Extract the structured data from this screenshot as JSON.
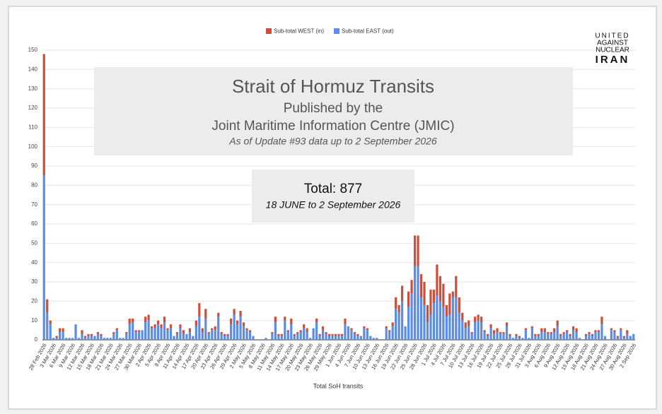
{
  "chart_data": {
    "type": "stacked_bar",
    "title": "Strait of Hormuz Transits",
    "subtitle": "Published by the",
    "subtitle2": "Joint Maritime Information Centre (JMIC)",
    "source_note": "As of Update #93 data up to 2 September 2026",
    "total_label": "Total: 877",
    "date_range": "18 JUNE to 2 September 2026",
    "logo": [
      "UNITED",
      "AGAINST",
      "NUCLEAR",
      "IRAN"
    ],
    "xlabel": "Total SoH transits",
    "ylim": [
      0,
      150
    ],
    "yticks": [
      0,
      10,
      20,
      30,
      40,
      50,
      60,
      70,
      80,
      90,
      100,
      110,
      120,
      130,
      140,
      150
    ],
    "grid": true,
    "legend": "top",
    "categories": [
      "28 Feb 2026",
      null,
      null,
      "3 Mar 2026",
      null,
      null,
      "6 Mar 2026",
      null,
      null,
      "9 Mar 2026",
      null,
      null,
      "12 Mar 2026",
      null,
      null,
      "15 Mar 2026",
      null,
      null,
      "18 Mar 2026",
      null,
      null,
      "21 Mar 2026",
      null,
      null,
      "24 Mar 2026",
      null,
      null,
      "27 Mar 2026",
      null,
      null,
      "30 Mar 2026",
      null,
      null,
      "2 Apr 2026",
      null,
      null,
      "5 Apr 2026",
      null,
      null,
      "8 Apr 2026",
      null,
      null,
      "11 Apr 2026",
      null,
      null,
      "14 Apr 2026",
      null,
      null,
      "17 Apr 2026",
      null,
      null,
      "20 Apr 2026",
      null,
      null,
      "23 Apr 2026",
      null,
      null,
      "26 Apr 2026",
      null,
      null,
      "29 Apr 2026",
      null,
      null,
      "2 May 2026",
      null,
      null,
      "5 May 2026",
      null,
      null,
      "8 May 2026",
      null,
      null,
      "11 May 2026",
      null,
      null,
      "14 May 2026",
      null,
      null,
      "17 May 2026",
      null,
      null,
      "20 May 2026",
      null,
      null,
      "23 May 2026",
      null,
      null,
      "26 May 2026",
      null,
      null,
      "29 May 2026",
      null,
      null,
      "1 Jun 2026",
      null,
      null,
      "4 Jun 2026",
      null,
      null,
      "7 Jun 2026",
      null,
      null,
      "10 Jun 2026",
      null,
      null,
      "13 Jun 2026",
      null,
      null,
      "16 Jun 2026",
      null,
      null,
      "19 Jun 2026",
      null,
      null,
      "22 Jun 2026",
      null,
      null,
      "25 Jun 2026",
      null,
      null,
      "28 Jun 2026",
      null,
      null,
      "1 Jul 2026",
      null,
      null,
      "4 Jul 2026",
      null,
      null,
      "7 Jul 2026",
      null,
      null,
      "10 Jul 2026",
      null,
      null,
      "13 Jul 2026",
      null,
      null,
      "16 Jul 2026",
      null,
      null,
      "19 Jul 2026",
      null,
      null,
      "22 Jul 2026",
      null,
      null,
      "25 Jul 2026",
      null,
      null,
      "28 Jul 2026",
      null,
      null,
      "31 Jul 2026",
      null,
      null,
      "3 Aug 2026",
      null,
      null,
      "6 Aug 2026",
      null,
      null,
      "9 Aug 2026",
      null,
      null,
      "12 Aug 2026",
      null,
      null,
      "15 Aug 2026",
      null,
      null,
      "18 Aug 2026",
      null,
      null,
      "21 Aug 2026",
      null,
      null,
      "24 Aug 2026",
      null,
      null,
      "27 Aug 2026",
      null,
      null,
      "30 Aug 2026",
      null,
      null,
      "2 Sep 2026"
    ],
    "series": [
      {
        "name": "Sub-total EAST (out)",
        "color": "#5b8de6",
        "values": [
          85,
          14,
          8,
          1,
          1,
          4,
          4,
          1,
          1,
          1,
          8,
          1,
          3,
          1,
          2,
          2,
          2,
          3,
          2,
          1,
          1,
          1,
          3,
          5,
          1,
          1,
          3,
          8,
          9,
          4,
          4,
          5,
          9,
          10,
          6,
          6,
          8,
          6,
          9,
          5,
          6,
          2,
          3,
          6,
          3,
          3,
          4,
          2,
          7,
          12,
          4,
          11,
          3,
          5,
          5,
          12,
          3,
          2,
          2,
          8,
          13,
          8,
          12,
          7,
          5,
          4,
          2,
          0,
          0,
          0,
          1,
          0,
          3,
          9,
          2,
          2,
          10,
          4,
          8,
          2,
          3,
          4,
          6,
          4,
          1,
          6,
          9,
          2,
          5,
          3,
          2,
          2,
          2,
          2,
          2,
          8,
          7,
          5,
          3,
          2,
          2,
          6,
          5,
          2,
          1,
          1,
          0,
          0,
          6,
          4,
          7,
          16,
          14,
          20,
          7,
          17,
          24,
          38,
          38,
          22,
          18,
          9,
          13,
          19,
          23,
          20,
          17,
          12,
          13,
          22,
          22,
          14,
          10,
          6,
          7,
          3,
          9,
          10,
          9,
          4,
          2,
          6,
          3,
          4,
          3,
          3,
          7,
          2,
          1,
          2,
          1,
          1,
          5,
          1,
          6,
          2,
          2,
          4,
          4,
          3,
          3,
          4,
          7,
          2,
          3,
          4,
          2,
          5,
          4,
          1,
          0,
          2,
          3,
          2,
          4,
          4,
          8,
          2,
          0,
          5,
          4,
          1,
          5,
          1,
          3,
          2,
          3
        ]
      },
      {
        "name": "Sub-total WEST (in)",
        "color": "#c9513b",
        "values": [
          63,
          7,
          2,
          0,
          1,
          2,
          2,
          0,
          0,
          0,
          0,
          0,
          2,
          1,
          1,
          1,
          0,
          1,
          1,
          0,
          0,
          0,
          1,
          1,
          0,
          0,
          1,
          3,
          2,
          1,
          1,
          0,
          3,
          3,
          1,
          2,
          2,
          2,
          3,
          1,
          2,
          0,
          1,
          2,
          2,
          0,
          2,
          0,
          3,
          7,
          2,
          5,
          1,
          1,
          2,
          2,
          1,
          1,
          1,
          3,
          3,
          2,
          3,
          2,
          1,
          1,
          0,
          0,
          0,
          0,
          0,
          0,
          1,
          3,
          1,
          1,
          2,
          1,
          3,
          1,
          1,
          1,
          2,
          2,
          0,
          0,
          2,
          1,
          2,
          1,
          1,
          1,
          1,
          1,
          1,
          3,
          0,
          1,
          1,
          1,
          0,
          1,
          1,
          0,
          0,
          0,
          0,
          0,
          1,
          1,
          2,
          6,
          4,
          8,
          0,
          8,
          7,
          16,
          16,
          12,
          12,
          9,
          13,
          7,
          16,
          13,
          12,
          6,
          11,
          3,
          11,
          8,
          4,
          3,
          3,
          1,
          3,
          3,
          3,
          1,
          1,
          2,
          2,
          2,
          1,
          1,
          2,
          1,
          0,
          1,
          1,
          0,
          1,
          0,
          1,
          1,
          1,
          2,
          2,
          1,
          1,
          2,
          3,
          1,
          1,
          1,
          1,
          2,
          2,
          0,
          0,
          1,
          1,
          1,
          1,
          1,
          4,
          0,
          0,
          1,
          1,
          1,
          1,
          1,
          2,
          0,
          0
        ]
      }
    ]
  }
}
